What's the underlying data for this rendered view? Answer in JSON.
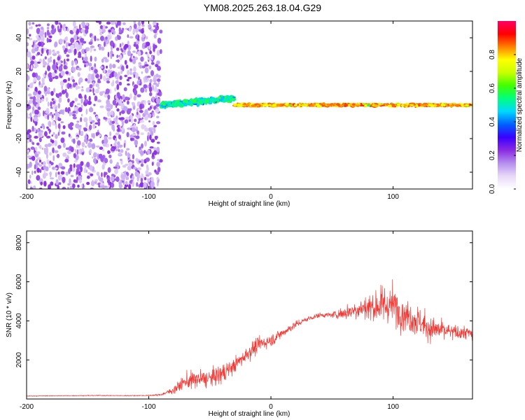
{
  "figure_title": "YM08.2025.263.18.04.G29",
  "chart_data": [
    {
      "type": "heatmap",
      "title": "YM08.2025.263.18.04.G29",
      "xlabel": "Height of straight line (km)",
      "ylabel": "Frequency (Hz)",
      "xlim": [
        -200,
        165
      ],
      "ylim": [
        -50,
        50
      ],
      "x_ticks": [
        -200,
        -100,
        0,
        100
      ],
      "x_tick_labels": [
        "-200",
        "-100",
        "0",
        "100"
      ],
      "y_ticks": [
        -40,
        -20,
        0,
        20,
        40
      ],
      "y_tick_labels": [
        "-40",
        "-20",
        "0",
        "20",
        "40"
      ],
      "colorbar": {
        "label": "Normalized spectral amplitude",
        "range": [
          0,
          1
        ],
        "ticks": [
          0.0,
          0.2,
          0.4,
          0.6,
          0.8
        ],
        "tick_labels": [
          "0.0",
          "0.2",
          "0.4",
          "0.6",
          "0.8"
        ],
        "colormap": [
          "#ffffff",
          "#e8d8f8",
          "#b58ff0",
          "#8a2be2",
          "#3a00ff",
          "#0060ff",
          "#00d8ff",
          "#00ff80",
          "#40ff00",
          "#c8ff00",
          "#ffff00",
          "#ff8000",
          "#ff0000",
          "#ff0066"
        ]
      },
      "features": [
        {
          "name": "broadband noise",
          "x_range": [
            -200,
            -90
          ],
          "freq_range": [
            -50,
            50
          ],
          "amplitude": 0.2
        },
        {
          "name": "diverging track",
          "x_range": [
            -90,
            -30
          ],
          "freq_center": [
            0,
            4
          ],
          "amplitude": 0.5
        },
        {
          "name": "zero-frequency line",
          "x_range": [
            -30,
            165
          ],
          "freq_center": 0,
          "amplitude": 0.9
        }
      ]
    },
    {
      "type": "line",
      "xlabel": "Height of straight line (km)",
      "ylabel": "SNR (10 * v/v)",
      "xlim": [
        -200,
        165
      ],
      "ylim": [
        0,
        8600
      ],
      "x_ticks": [
        -200,
        -100,
        0,
        100
      ],
      "x_tick_labels": [
        "-200",
        "-100",
        "0",
        "100"
      ],
      "y_ticks": [
        2000,
        4000,
        6000,
        8000
      ],
      "y_tick_labels": [
        "2000",
        "4000",
        "6000",
        "8000"
      ],
      "line_color": "#ef3b36",
      "series": [
        {
          "name": "SNR",
          "x": [
            -200,
            -180,
            -160,
            -140,
            -120,
            -100,
            -90,
            -80,
            -70,
            -60,
            -50,
            -40,
            -30,
            -20,
            -10,
            0,
            10,
            20,
            30,
            40,
            50,
            60,
            70,
            80,
            90,
            100,
            110,
            120,
            130,
            140,
            150,
            160,
            165
          ],
          "y": [
            150,
            160,
            170,
            180,
            170,
            180,
            220,
            450,
            900,
            1000,
            1050,
            1300,
            1700,
            2300,
            2800,
            3000,
            3400,
            3800,
            4100,
            4300,
            4300,
            4400,
            4600,
            4700,
            4800,
            4800,
            4300,
            4000,
            3600,
            3500,
            3400,
            3400,
            3300
          ],
          "spread": [
            40,
            40,
            40,
            40,
            40,
            50,
            80,
            400,
            900,
            1000,
            900,
            1100,
            800,
            900,
            800,
            700,
            500,
            400,
            300,
            250,
            300,
            800,
            1100,
            1500,
            2000,
            2200,
            1800,
            1600,
            1400,
            1100,
            800,
            800,
            700
          ]
        }
      ]
    }
  ]
}
